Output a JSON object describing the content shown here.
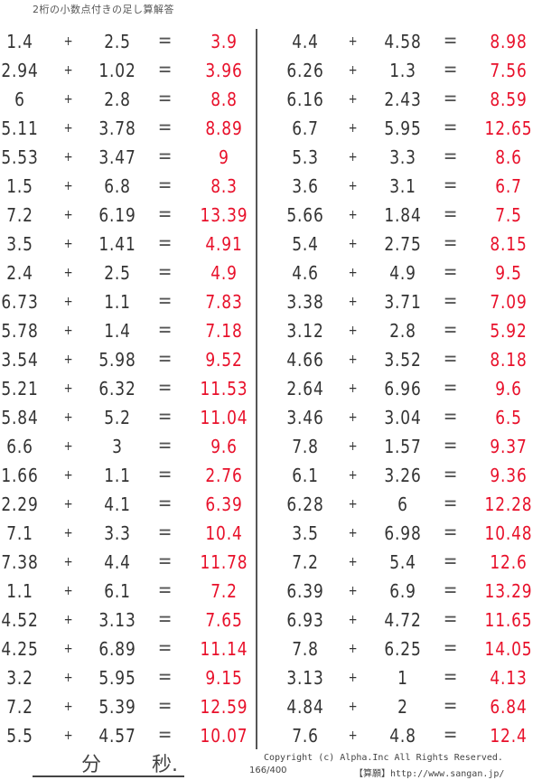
{
  "title": "2桁の小数点付きの足し算解答",
  "operator": "+",
  "equals": "=",
  "answer_color": "#e8102a",
  "left_problems": [
    {
      "a": "1.4",
      "b": "2.5",
      "answer": "3.9"
    },
    {
      "a": "2.94",
      "b": "1.02",
      "answer": "3.96"
    },
    {
      "a": "6",
      "b": "2.8",
      "answer": "8.8"
    },
    {
      "a": "5.11",
      "b": "3.78",
      "answer": "8.89"
    },
    {
      "a": "5.53",
      "b": "3.47",
      "answer": "9"
    },
    {
      "a": "1.5",
      "b": "6.8",
      "answer": "8.3"
    },
    {
      "a": "7.2",
      "b": "6.19",
      "answer": "13.39"
    },
    {
      "a": "3.5",
      "b": "1.41",
      "answer": "4.91"
    },
    {
      "a": "2.4",
      "b": "2.5",
      "answer": "4.9"
    },
    {
      "a": "6.73",
      "b": "1.1",
      "answer": "7.83"
    },
    {
      "a": "5.78",
      "b": "1.4",
      "answer": "7.18"
    },
    {
      "a": "3.54",
      "b": "5.98",
      "answer": "9.52"
    },
    {
      "a": "5.21",
      "b": "6.32",
      "answer": "11.53"
    },
    {
      "a": "5.84",
      "b": "5.2",
      "answer": "11.04"
    },
    {
      "a": "6.6",
      "b": "3",
      "answer": "9.6"
    },
    {
      "a": "1.66",
      "b": "1.1",
      "answer": "2.76"
    },
    {
      "a": "2.29",
      "b": "4.1",
      "answer": "6.39"
    },
    {
      "a": "7.1",
      "b": "3.3",
      "answer": "10.4"
    },
    {
      "a": "7.38",
      "b": "4.4",
      "answer": "11.78"
    },
    {
      "a": "1.1",
      "b": "6.1",
      "answer": "7.2"
    },
    {
      "a": "4.52",
      "b": "3.13",
      "answer": "7.65"
    },
    {
      "a": "4.25",
      "b": "6.89",
      "answer": "11.14"
    },
    {
      "a": "3.2",
      "b": "5.95",
      "answer": "9.15"
    },
    {
      "a": "7.2",
      "b": "5.39",
      "answer": "12.59"
    },
    {
      "a": "5.5",
      "b": "4.57",
      "answer": "10.07"
    }
  ],
  "right_problems": [
    {
      "a": "4.4",
      "b": "4.58",
      "answer": "8.98"
    },
    {
      "a": "6.26",
      "b": "1.3",
      "answer": "7.56"
    },
    {
      "a": "6.16",
      "b": "2.43",
      "answer": "8.59"
    },
    {
      "a": "6.7",
      "b": "5.95",
      "answer": "12.65"
    },
    {
      "a": "5.3",
      "b": "3.3",
      "answer": "8.6"
    },
    {
      "a": "3.6",
      "b": "3.1",
      "answer": "6.7"
    },
    {
      "a": "5.66",
      "b": "1.84",
      "answer": "7.5"
    },
    {
      "a": "5.4",
      "b": "2.75",
      "answer": "8.15"
    },
    {
      "a": "4.6",
      "b": "4.9",
      "answer": "9.5"
    },
    {
      "a": "3.38",
      "b": "3.71",
      "answer": "7.09"
    },
    {
      "a": "3.12",
      "b": "2.8",
      "answer": "5.92"
    },
    {
      "a": "4.66",
      "b": "3.52",
      "answer": "8.18"
    },
    {
      "a": "2.64",
      "b": "6.96",
      "answer": "9.6"
    },
    {
      "a": "3.46",
      "b": "3.04",
      "answer": "6.5"
    },
    {
      "a": "7.8",
      "b": "1.57",
      "answer": "9.37"
    },
    {
      "a": "6.1",
      "b": "3.26",
      "answer": "9.36"
    },
    {
      "a": "6.28",
      "b": "6",
      "answer": "12.28"
    },
    {
      "a": "3.5",
      "b": "6.98",
      "answer": "10.48"
    },
    {
      "a": "7.2",
      "b": "5.4",
      "answer": "12.6"
    },
    {
      "a": "6.39",
      "b": "6.9",
      "answer": "13.29"
    },
    {
      "a": "6.93",
      "b": "4.72",
      "answer": "11.65"
    },
    {
      "a": "7.8",
      "b": "6.25",
      "answer": "14.05"
    },
    {
      "a": "3.13",
      "b": "1",
      "answer": "4.13"
    },
    {
      "a": "4.84",
      "b": "2",
      "answer": "6.84"
    },
    {
      "a": "7.6",
      "b": "4.8",
      "answer": "12.4"
    }
  ],
  "footer": {
    "minutes_label": "分",
    "seconds_label": "秒.",
    "copyright": "Copyright (c)  Alpha.Inc All Rights Reserved.",
    "page": "166/400",
    "site": "【算願】http://www.sangan.jp/"
  }
}
